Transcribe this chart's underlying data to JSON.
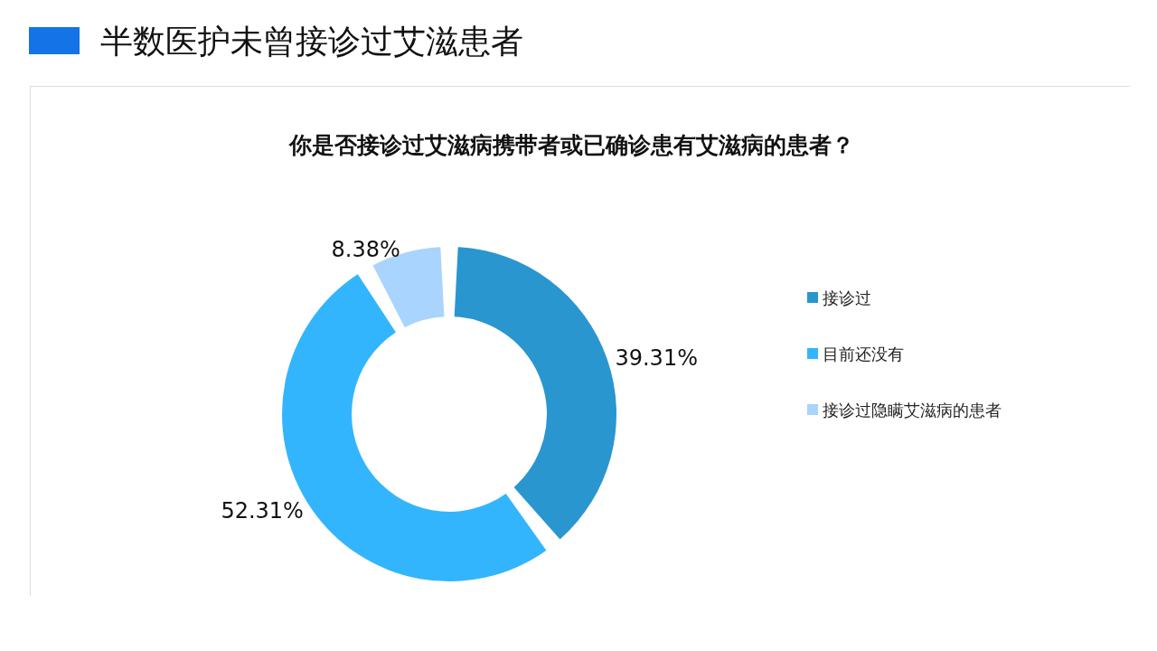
{
  "chart_data": {
    "type": "donut",
    "title": "半数医护未曾接诊过艾滋患者",
    "subtitle": "你是否接诊过艾滋病携带者或已确诊患有艾滋病的患者？",
    "categories": [
      "接诊过",
      "目前还没有",
      "接诊过隐瞒艾滋病的患者"
    ],
    "values": [
      39.31,
      52.31,
      8.38
    ],
    "value_labels": [
      "39.31%",
      "52.31%",
      "8.38%"
    ],
    "colors": [
      "#2a96d0",
      "#33b5fd",
      "#a8d4fd"
    ],
    "legend": "right"
  }
}
